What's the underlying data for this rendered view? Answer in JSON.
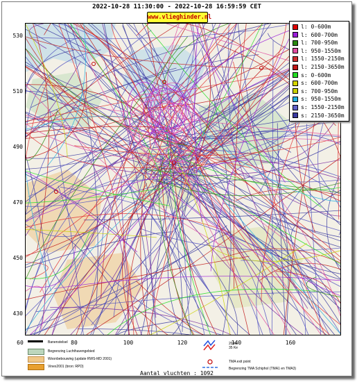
{
  "header": {
    "title": "2022-10-28 11:30:00 - 2022-10-28 16:59:59 CET",
    "logo_text": "www.vlieghinder.nl"
  },
  "axes": {
    "y_ticks": [
      "530",
      "510",
      "490",
      "470",
      "450",
      "430"
    ],
    "x_ticks": [
      "60",
      "80",
      "100",
      "120",
      "140",
      "160"
    ]
  },
  "legend": {
    "items": [
      {
        "label": "l: 0-600m",
        "color": "#e00000"
      },
      {
        "label": "l: 600-700m",
        "color": "#9b1ed8"
      },
      {
        "label": "l: 700-950m",
        "color": "#2a8a10"
      },
      {
        "label": "l: 950-1550m",
        "color": "#e14da0"
      },
      {
        "label": "l: 1550-2150m",
        "color": "#d03030"
      },
      {
        "label": "l: 2150-3650m",
        "color": "#c01818"
      },
      {
        "label": "s: 0-600m",
        "color": "#22dd22"
      },
      {
        "label": "s: 600-700m",
        "color": "#d6d600"
      },
      {
        "label": "s: 700-950m",
        "color": "#c8d000"
      },
      {
        "label": "s: 950-1550m",
        "color": "#22b0e0"
      },
      {
        "label": "s: 1550-2150m",
        "color": "#6060c8"
      },
      {
        "label": "s: 2150-3650m",
        "color": "#3a3aa0"
      }
    ]
  },
  "map_legend": {
    "runway": "Banenstelsel",
    "airport_boundary": "Begrenzing Luchthavengebied",
    "housing": "Woonbebouwing (update RWS-MD 2001)",
    "vinex": "Vinex2001 (bron: RPD)",
    "contours_35ke": "35 Ke",
    "contours_20ke": "20 Ke",
    "tma_exit": "TMA exit point",
    "tma_boundary": "Begrenzing TMA Schiphol  (TMA1 en TMA3)"
  },
  "footer": {
    "flight_count": "Aantal vluchten : 1092"
  }
}
